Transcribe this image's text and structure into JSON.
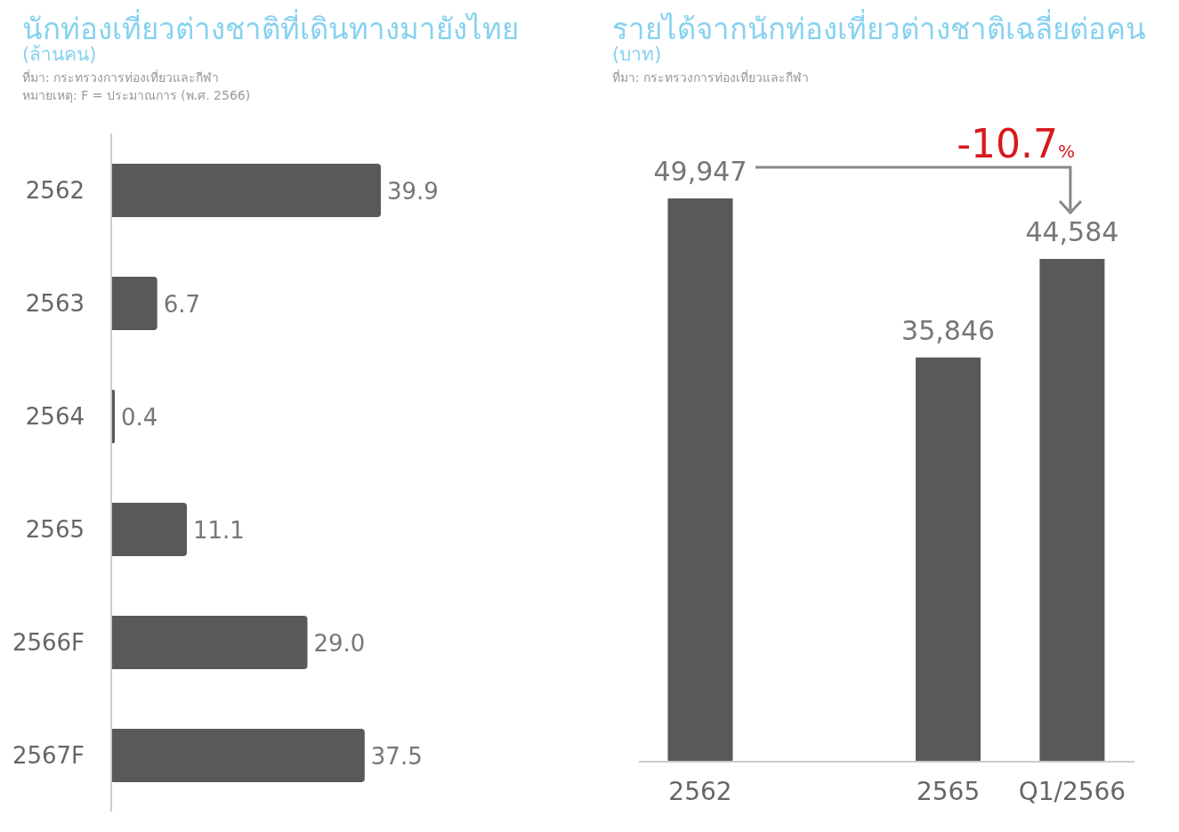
{
  "chart_data": [
    {
      "type": "bar",
      "orientation": "horizontal",
      "title": "นักท่องเที่ยวต่างชาติที่เดินทางมายังไทย",
      "subtitle": "(ล้านคน)",
      "annotations": [
        "ที่มา: กระทรวงการท่องเที่ยวและกีฬา",
        "หมายเหตุ: F = ประมาณการ (พ.ศ. 2566)"
      ],
      "categories": [
        "2562",
        "2563",
        "2564",
        "2565",
        "2566F",
        "2567F"
      ],
      "values": [
        39.9,
        6.7,
        0.4,
        11.1,
        29.0,
        37.5
      ],
      "value_labels": [
        "39.9",
        "6.7",
        "0.4",
        "11.1",
        "29.0",
        "37.5"
      ],
      "color": "#595959"
    },
    {
      "type": "bar",
      "title": "รายได้จากนักท่องเที่ยวต่างชาติเฉลี่ยต่อคน",
      "subtitle": "(บาท)",
      "annotations": [
        "ที่มา: กระทรวงการท่องเที่ยวและกีฬา",
        "-10.7%"
      ],
      "categories": [
        "2562",
        null,
        "2565",
        "Q1/2566"
      ],
      "values": [
        49947,
        null,
        35846,
        44584
      ],
      "value_labels": [
        "49,947",
        null,
        "35,846",
        "44,584"
      ],
      "color": "#595959"
    }
  ]
}
